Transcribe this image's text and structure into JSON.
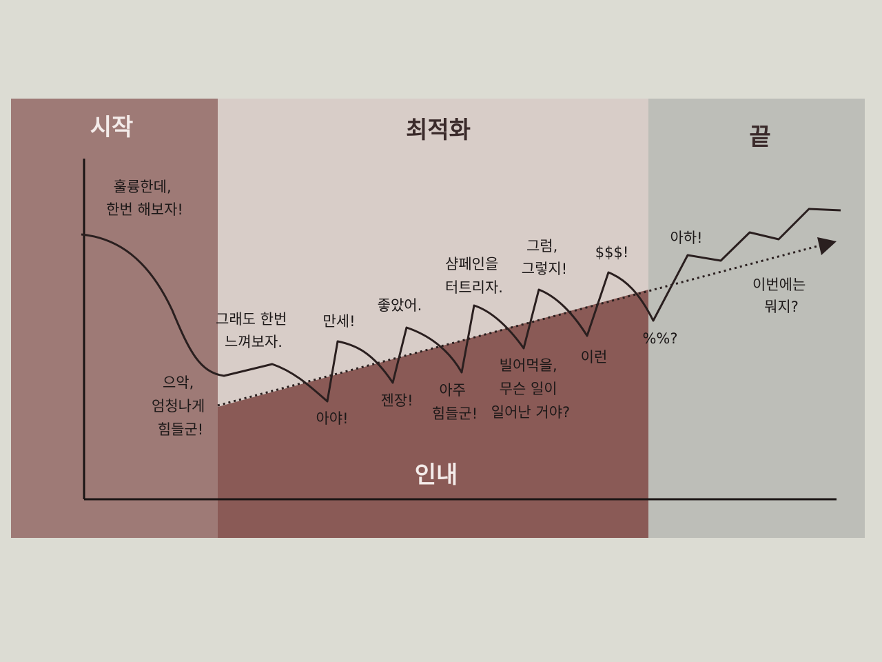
{
  "phases": {
    "start": "시작",
    "optimization": "최적화",
    "end": "끝",
    "patience": "인내"
  },
  "annotations": {
    "great": [
      "훌륭한데,",
      "한번 해보자!"
    ],
    "ugh": [
      "으악,",
      "엄청나게",
      "힘들군!"
    ],
    "try_again": [
      "그래도 한번",
      "느껴보자."
    ],
    "hooray": [
      "만세!"
    ],
    "ouch": [
      "아야!"
    ],
    "good": [
      "좋았어."
    ],
    "damn": [
      "젠장!"
    ],
    "champagne": [
      "샴페인을",
      "터트리자."
    ],
    "so_hard": [
      "아주",
      "힘들군!"
    ],
    "what_happened": [
      "빌어먹을,",
      "무슨 일이",
      "일어난 거야?"
    ],
    "right": [
      "그럼,",
      "그렇지!"
    ],
    "money": [
      "$$$!"
    ],
    "oh_no": [
      "이런"
    ],
    "confused": [
      "%%?"
    ],
    "aha": [
      "아하!"
    ],
    "whats_next": [
      "이번에는",
      "뭐지?"
    ]
  },
  "colors": {
    "page": "#dcdcd3",
    "start_band": "#9e7a76",
    "optimization_band": "#d8cdc8",
    "end_band": "#bdbeb8",
    "patience_band": "#8a5a56",
    "curve": "#2a1f1f",
    "trend_arrow": "#2a1f1f",
    "phase_label_light": "#f4ecea",
    "phase_label_dark": "#3a2a2a"
  },
  "elements": {
    "curve": "emotional-journey curve",
    "trend": "dotted upward trend arrow",
    "axes": "x and y axes"
  }
}
